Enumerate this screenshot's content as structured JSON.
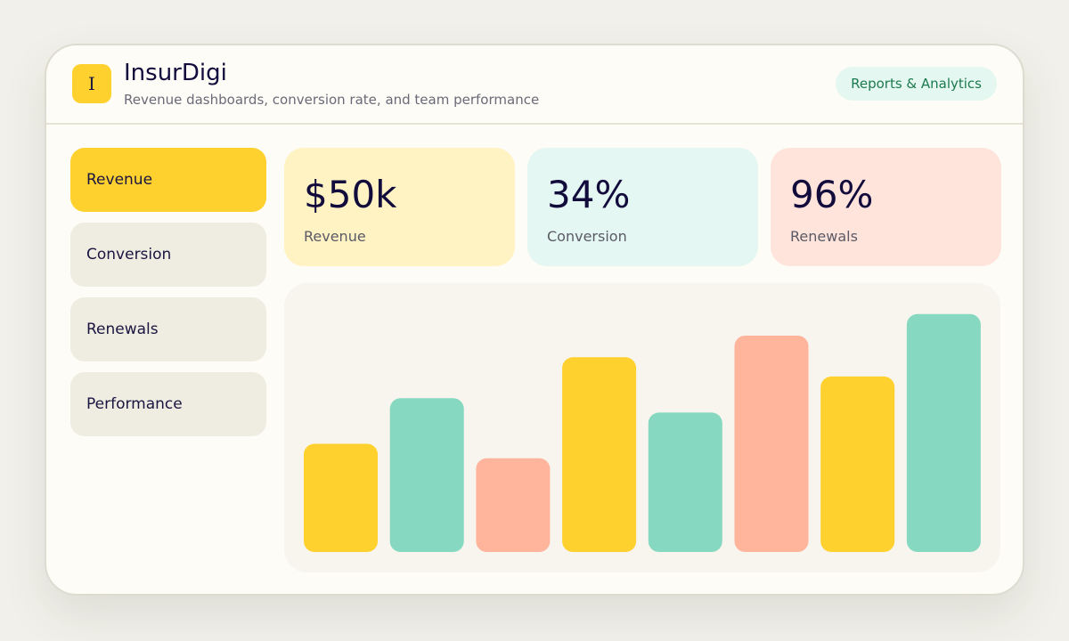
{
  "app": {
    "logo_letter": "I",
    "title": "InsurDigi",
    "subtitle": "Revenue dashboards, conversion rate, and team performance",
    "badge": "Reports & Analytics"
  },
  "sidebar": {
    "items": [
      {
        "label": "Revenue",
        "active": true
      },
      {
        "label": "Conversion",
        "active": false
      },
      {
        "label": "Renewals",
        "active": false
      },
      {
        "label": "Performance",
        "active": false
      }
    ]
  },
  "stats": [
    {
      "value": "$50k",
      "label": "Revenue",
      "bg": "#fff3c4"
    },
    {
      "value": "34%",
      "label": "Conversion",
      "bg": "#e5f7f2"
    },
    {
      "value": "96%",
      "label": "Renewals",
      "bg": "#ffe4dc"
    }
  ],
  "colors": {
    "accent_yellow": "#ffd12f",
    "accent_teal": "#86d9c0",
    "accent_salmon": "#ffb49c"
  },
  "chart_data": {
    "type": "bar",
    "values": [
      45,
      64,
      39,
      81,
      58,
      90,
      73,
      99
    ],
    "colors": [
      "#ffd12f",
      "#86d9c0",
      "#ffb49c",
      "#ffd12f",
      "#86d9c0",
      "#ffb49c",
      "#ffd12f",
      "#86d9c0"
    ],
    "ylim": [
      0,
      100
    ],
    "grid": false,
    "legend": "none"
  }
}
